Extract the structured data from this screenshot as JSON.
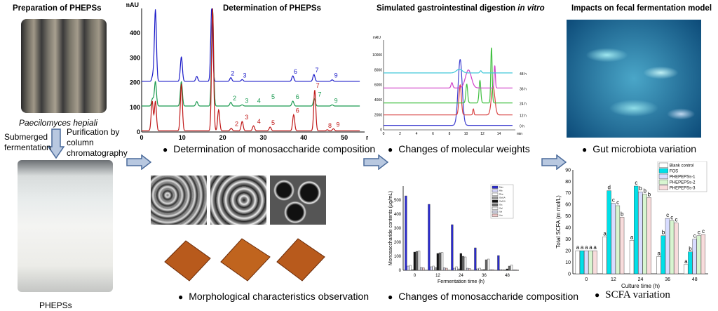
{
  "sections": {
    "preparation": {
      "title": "Preparation of PHEPSs",
      "species_label": "Paecilomyces hepiali",
      "step_left": "Submerged fermentation",
      "step_right": "Purification by column chromatography",
      "product_label": "PHEPSs"
    },
    "determination": {
      "title": "Determination of PHEPSs",
      "caption_1": "Determination of monosaccharide composition",
      "caption_2": "Morphological characteristics observation"
    },
    "digestion": {
      "title_main": "Simulated gastrointestinal digestion ",
      "title_italic": "in vitro",
      "caption_1": "Changes of molecular weights",
      "caption_2": "Changes of monosaccharide composition"
    },
    "fermentation": {
      "title": "Impacts on fecal fermentation model",
      "caption_1": "Gut microbiota variation",
      "caption_2": "SCFA  variation"
    }
  },
  "chart_data": [
    {
      "id": "hplc",
      "type": "line",
      "ylabel": "mAU",
      "xlabel": "min",
      "xlim": [
        0,
        55
      ],
      "ylim": [
        0,
        500
      ],
      "xticks": [
        0,
        10,
        20,
        30,
        40,
        50
      ],
      "yticks": [
        0,
        100,
        200,
        300,
        400
      ],
      "series": [
        {
          "name": "blue",
          "color": "#1a1ac8",
          "baseline": 205,
          "peaks": [
            [
              2.8,
              25
            ],
            [
              3.4,
              290
            ],
            [
              9.8,
              100
            ],
            [
              13.6,
              20
            ],
            [
              17.3,
              300
            ],
            [
              22,
              15
            ],
            [
              24.8,
              7
            ],
            [
              37.3,
              22
            ],
            [
              42.5,
              28
            ],
            [
              47,
              6
            ]
          ],
          "labels": [
            [
              "2",
              22
            ],
            [
              "3",
              25
            ],
            [
              "6",
              37.5
            ],
            [
              "7",
              42.8
            ],
            [
              "9",
              47.5
            ]
          ]
        },
        {
          "name": "green",
          "color": "#1a9a50",
          "baseline": 105,
          "peaks": [
            [
              2.7,
              30
            ],
            [
              3.4,
              100
            ],
            [
              9.8,
              100
            ],
            [
              13.6,
              18
            ],
            [
              17.5,
              395
            ],
            [
              22,
              15
            ],
            [
              24.8,
              5
            ],
            [
              37.3,
              20
            ],
            [
              42.6,
              30
            ],
            [
              47,
              5
            ]
          ],
          "labels": [
            [
              "2",
              22.5
            ],
            [
              "3",
              25.5
            ],
            [
              "4",
              28.5
            ],
            [
              "5",
              32
            ],
            [
              "6",
              38
            ],
            [
              "7",
              43.5
            ],
            [
              "9",
              47.5
            ]
          ]
        },
        {
          "name": "red",
          "color": "#c01818",
          "baseline": 5,
          "peaks": [
            [
              2.6,
              120
            ],
            [
              3.4,
              120
            ],
            [
              9.8,
              190
            ],
            [
              17.5,
              495
            ],
            [
              19,
              85
            ],
            [
              22.1,
              10
            ],
            [
              24.8,
              38
            ],
            [
              27.6,
              20
            ],
            [
              31.7,
              15
            ],
            [
              37.5,
              65
            ],
            [
              42.7,
              165
            ],
            [
              45.8,
              4
            ],
            [
              47.3,
              8
            ]
          ],
          "labels": [
            [
              "2",
              23
            ],
            [
              "3",
              25.5
            ],
            [
              "4",
              28.5
            ],
            [
              "5",
              32
            ],
            [
              "6",
              38
            ],
            [
              "7",
              43
            ],
            [
              "8",
              46
            ],
            [
              "9",
              48
            ]
          ]
        }
      ]
    },
    {
      "id": "gpc",
      "type": "line",
      "ylabel": "mRU",
      "xlabel": "min",
      "xlim": [
        0,
        16
      ],
      "ylim": [
        0,
        12000
      ],
      "xticks": [
        0,
        2,
        4,
        6,
        8,
        10,
        12,
        14
      ],
      "yticks": [
        0,
        2000,
        4000,
        6000,
        8000,
        10000
      ],
      "series": [
        {
          "name": "0 h",
          "color": "#4040d0",
          "baseline": 600,
          "peaks": [
            [
              9.3,
              8800,
              0.35
            ]
          ]
        },
        {
          "name": "12 h",
          "color": "#d84040",
          "baseline": 2000,
          "peaks": [
            [
              9.3,
              4000,
              0.2
            ],
            [
              10.9,
              800,
              0.1
            ],
            [
              13.3,
              3800,
              0.3
            ]
          ]
        },
        {
          "name": "24 h",
          "color": "#40c040",
          "baseline": 3600,
          "peaks": [
            [
              10.1,
              2500,
              0.15
            ],
            [
              11.7,
              3000,
              0.15
            ],
            [
              13.1,
              7400,
              0.12
            ]
          ]
        },
        {
          "name": "36 h",
          "color": "#d040c8",
          "baseline": 5600,
          "peaks": [
            [
              8.3,
              700,
              0.15
            ],
            [
              10.3,
              2400,
              0.5
            ],
            [
              13.5,
              3000,
              0.1
            ]
          ]
        },
        {
          "name": "48 h",
          "color": "#40c8d8",
          "baseline": 7600,
          "peaks": [
            [
              9.2,
              500,
              0.5
            ],
            [
              11.8,
              300,
              0.15
            ]
          ]
        }
      ]
    },
    {
      "id": "mono",
      "type": "bar",
      "xlabel": "Fermentation time (h)",
      "ylabel": "Monosaccharide contents (μg/mL)",
      "ylim": [
        0,
        600
      ],
      "yticks": [
        0,
        100,
        200,
        300,
        400,
        500
      ],
      "categories": [
        "0",
        "12",
        "24",
        "36",
        "48"
      ],
      "legend": [
        "Man",
        "Rib",
        "Rha",
        "GlcUA",
        "GalUA",
        "Glc",
        "Gal",
        "Xyl",
        "Ara"
      ],
      "series": [
        {
          "name": "Man",
          "color": "#2a2ad0",
          "values": [
            530,
            470,
            325,
            160,
            105
          ]
        },
        {
          "name": "Rib",
          "color": "#d8d8ff",
          "values": [
            30,
            25,
            15,
            10,
            5
          ]
        },
        {
          "name": "Rha",
          "color": "#ffffff",
          "values": [
            35,
            30,
            25,
            15,
            5
          ]
        },
        {
          "name": "GlcUA",
          "color": "#999999",
          "values": [
            5,
            20,
            10,
            5,
            3
          ]
        },
        {
          "name": "GalUA",
          "color": "#111111",
          "values": [
            130,
            120,
            120,
            5,
            10
          ]
        },
        {
          "name": "Glc",
          "color": "#666666",
          "values": [
            135,
            125,
            100,
            75,
            30
          ]
        },
        {
          "name": "Gal",
          "color": "#f4f4f4",
          "values": [
            138,
            127,
            95,
            80,
            38
          ]
        },
        {
          "name": "Xyl",
          "color": "#ccccdd",
          "values": [
            20,
            18,
            15,
            5,
            3
          ]
        },
        {
          "name": "Ara",
          "color": "#f0c8c8",
          "values": [
            18,
            15,
            12,
            5,
            3
          ]
        }
      ]
    },
    {
      "id": "scfa",
      "type": "bar",
      "xlabel": "Culture time (h)",
      "ylabel": "Total SCFA (m mol/L)",
      "ylim": [
        0,
        90
      ],
      "yticks": [
        0,
        10,
        20,
        30,
        40,
        50,
        60,
        70,
        80,
        90
      ],
      "categories": [
        "0",
        "12",
        "24",
        "36",
        "48"
      ],
      "series": [
        {
          "name": "Blank control",
          "color": "#ffffff",
          "values": [
            20,
            32,
            29,
            15,
            8
          ],
          "letters": [
            "a",
            "a",
            "a",
            "a",
            "a"
          ]
        },
        {
          "name": "FOS",
          "color": "#00e0e8",
          "values": [
            20,
            72,
            76,
            33,
            19
          ],
          "letters": [
            "a",
            "d",
            "c",
            "b",
            "b"
          ]
        },
        {
          "name": "PHEPEPSs-1",
          "color": "#d8dcff",
          "values": [
            20,
            61,
            71,
            48,
            30
          ],
          "letters": [
            "a",
            "c",
            "b",
            "c",
            "c"
          ]
        },
        {
          "name": "PHEPEPSs-2",
          "color": "#d8f5d0",
          "values": [
            20,
            59,
            69,
            46,
            33
          ],
          "letters": [
            "a",
            "c",
            "b",
            "c",
            "c"
          ]
        },
        {
          "name": "PHEPEPSs-3",
          "color": "#f8dcdc",
          "values": [
            20,
            49,
            66,
            44,
            34
          ],
          "letters": [
            "a",
            "b",
            "b",
            "c",
            "c"
          ]
        }
      ]
    }
  ],
  "colors": {
    "arrow_fill": "#b8c8e0",
    "arrow_stroke": "#4a6a9a"
  }
}
